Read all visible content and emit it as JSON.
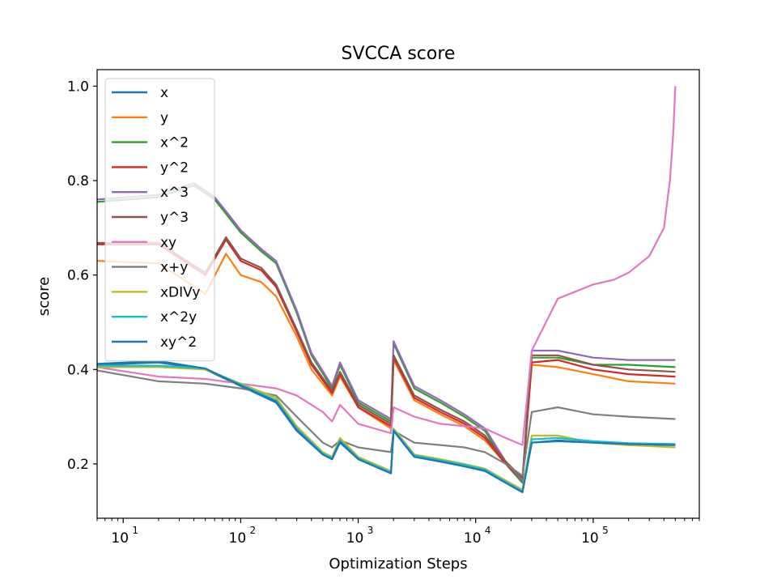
{
  "chart_data": {
    "type": "line",
    "title": "SVCCA score",
    "xlabel": "Optimization Steps",
    "ylabel": "score",
    "x_scale": "log",
    "xlim": [
      6,
      800000
    ],
    "ylim": [
      0.085,
      1.035
    ],
    "y_ticks": [
      0.2,
      0.4,
      0.6,
      0.8,
      1.0
    ],
    "y_tick_labels": [
      "0.2",
      "0.4",
      "0.6",
      "0.8",
      "1.0"
    ],
    "x_ticks": [
      10,
      100,
      1000,
      10000,
      100000
    ],
    "x_tick_labels": [
      {
        "base": "10",
        "exp": "1"
      },
      {
        "base": "10",
        "exp": "2"
      },
      {
        "base": "10",
        "exp": "3"
      },
      {
        "base": "10",
        "exp": "4"
      },
      {
        "base": "10",
        "exp": "5"
      }
    ],
    "grid": false,
    "legend_position": "upper-left",
    "series": [
      {
        "name": "x",
        "color": "#1f77b4",
        "points": [
          [
            6,
            0.41
          ],
          [
            20,
            0.415
          ],
          [
            50,
            0.4
          ],
          [
            100,
            0.365
          ],
          [
            200,
            0.33
          ],
          [
            300,
            0.27
          ],
          [
            500,
            0.22
          ],
          [
            600,
            0.21
          ],
          [
            700,
            0.245
          ],
          [
            1000,
            0.21
          ],
          [
            1900,
            0.18
          ],
          [
            2000,
            0.27
          ],
          [
            3000,
            0.215
          ],
          [
            5000,
            0.205
          ],
          [
            8000,
            0.195
          ],
          [
            12000,
            0.185
          ],
          [
            18000,
            0.16
          ],
          [
            25000,
            0.14
          ],
          [
            30000,
            0.245
          ],
          [
            50000,
            0.25
          ],
          [
            100000,
            0.245
          ],
          [
            200000,
            0.24
          ],
          [
            500000,
            0.24
          ]
        ]
      },
      {
        "name": "y",
        "color": "#ff7f0e",
        "points": [
          [
            6,
            0.63
          ],
          [
            20,
            0.625
          ],
          [
            50,
            0.56
          ],
          [
            75,
            0.645
          ],
          [
            100,
            0.6
          ],
          [
            150,
            0.585
          ],
          [
            200,
            0.555
          ],
          [
            300,
            0.47
          ],
          [
            400,
            0.4
          ],
          [
            600,
            0.345
          ],
          [
            700,
            0.385
          ],
          [
            1000,
            0.32
          ],
          [
            1900,
            0.275
          ],
          [
            2000,
            0.42
          ],
          [
            3000,
            0.335
          ],
          [
            5000,
            0.305
          ],
          [
            8000,
            0.28
          ],
          [
            12000,
            0.25
          ],
          [
            18000,
            0.2
          ],
          [
            25000,
            0.165
          ],
          [
            30000,
            0.41
          ],
          [
            50000,
            0.405
          ],
          [
            100000,
            0.39
          ],
          [
            200000,
            0.375
          ],
          [
            500000,
            0.37
          ]
        ]
      },
      {
        "name": "x^2",
        "color": "#2ca02c",
        "points": [
          [
            6,
            0.755
          ],
          [
            20,
            0.765
          ],
          [
            40,
            0.79
          ],
          [
            60,
            0.76
          ],
          [
            75,
            0.73
          ],
          [
            100,
            0.69
          ],
          [
            150,
            0.65
          ],
          [
            200,
            0.625
          ],
          [
            300,
            0.52
          ],
          [
            400,
            0.43
          ],
          [
            600,
            0.36
          ],
          [
            700,
            0.41
          ],
          [
            1000,
            0.33
          ],
          [
            1900,
            0.29
          ],
          [
            2000,
            0.455
          ],
          [
            3000,
            0.36
          ],
          [
            5000,
            0.33
          ],
          [
            8000,
            0.3
          ],
          [
            12000,
            0.27
          ],
          [
            18000,
            0.2
          ],
          [
            25000,
            0.16
          ],
          [
            30000,
            0.425
          ],
          [
            50000,
            0.425
          ],
          [
            100000,
            0.41
          ],
          [
            200000,
            0.41
          ],
          [
            500000,
            0.405
          ]
        ]
      },
      {
        "name": "y^2",
        "color": "#d62728",
        "points": [
          [
            6,
            0.665
          ],
          [
            20,
            0.665
          ],
          [
            50,
            0.6
          ],
          [
            75,
            0.675
          ],
          [
            100,
            0.63
          ],
          [
            150,
            0.61
          ],
          [
            200,
            0.575
          ],
          [
            300,
            0.48
          ],
          [
            400,
            0.41
          ],
          [
            600,
            0.35
          ],
          [
            700,
            0.39
          ],
          [
            1000,
            0.32
          ],
          [
            1900,
            0.28
          ],
          [
            2000,
            0.425
          ],
          [
            3000,
            0.34
          ],
          [
            5000,
            0.31
          ],
          [
            8000,
            0.285
          ],
          [
            12000,
            0.255
          ],
          [
            18000,
            0.2
          ],
          [
            25000,
            0.165
          ],
          [
            30000,
            0.415
          ],
          [
            50000,
            0.42
          ],
          [
            100000,
            0.4
          ],
          [
            200000,
            0.39
          ],
          [
            500000,
            0.385
          ]
        ]
      },
      {
        "name": "x^3",
        "color": "#9467bd",
        "points": [
          [
            6,
            0.76
          ],
          [
            20,
            0.77
          ],
          [
            40,
            0.795
          ],
          [
            60,
            0.765
          ],
          [
            75,
            0.735
          ],
          [
            100,
            0.695
          ],
          [
            150,
            0.655
          ],
          [
            200,
            0.63
          ],
          [
            300,
            0.525
          ],
          [
            400,
            0.435
          ],
          [
            600,
            0.365
          ],
          [
            700,
            0.415
          ],
          [
            1000,
            0.335
          ],
          [
            1900,
            0.295
          ],
          [
            2000,
            0.46
          ],
          [
            3000,
            0.365
          ],
          [
            5000,
            0.335
          ],
          [
            8000,
            0.305
          ],
          [
            12000,
            0.275
          ],
          [
            18000,
            0.205
          ],
          [
            25000,
            0.165
          ],
          [
            30000,
            0.44
          ],
          [
            50000,
            0.44
          ],
          [
            100000,
            0.425
          ],
          [
            200000,
            0.42
          ],
          [
            500000,
            0.42
          ]
        ]
      },
      {
        "name": "y^3",
        "color": "#8c564b",
        "points": [
          [
            6,
            0.668
          ],
          [
            20,
            0.668
          ],
          [
            50,
            0.605
          ],
          [
            75,
            0.68
          ],
          [
            100,
            0.635
          ],
          [
            150,
            0.615
          ],
          [
            200,
            0.58
          ],
          [
            300,
            0.485
          ],
          [
            400,
            0.415
          ],
          [
            600,
            0.355
          ],
          [
            700,
            0.395
          ],
          [
            1000,
            0.325
          ],
          [
            1900,
            0.285
          ],
          [
            2000,
            0.43
          ],
          [
            3000,
            0.345
          ],
          [
            5000,
            0.315
          ],
          [
            8000,
            0.29
          ],
          [
            12000,
            0.26
          ],
          [
            18000,
            0.205
          ],
          [
            25000,
            0.17
          ],
          [
            30000,
            0.43
          ],
          [
            50000,
            0.43
          ],
          [
            100000,
            0.41
          ],
          [
            200000,
            0.4
          ],
          [
            500000,
            0.395
          ]
        ]
      },
      {
        "name": "xy",
        "color": "#e377c2",
        "points": [
          [
            6,
            0.405
          ],
          [
            20,
            0.385
          ],
          [
            50,
            0.38
          ],
          [
            100,
            0.37
          ],
          [
            200,
            0.36
          ],
          [
            300,
            0.345
          ],
          [
            500,
            0.31
          ],
          [
            600,
            0.29
          ],
          [
            700,
            0.325
          ],
          [
            1000,
            0.285
          ],
          [
            1900,
            0.265
          ],
          [
            2000,
            0.32
          ],
          [
            3000,
            0.3
          ],
          [
            5000,
            0.285
          ],
          [
            8000,
            0.28
          ],
          [
            12000,
            0.275
          ],
          [
            18000,
            0.255
          ],
          [
            25000,
            0.24
          ],
          [
            30000,
            0.44
          ],
          [
            50000,
            0.55
          ],
          [
            100000,
            0.58
          ],
          [
            150000,
            0.59
          ],
          [
            200000,
            0.605
          ],
          [
            300000,
            0.64
          ],
          [
            400000,
            0.7
          ],
          [
            450000,
            0.8
          ],
          [
            480000,
            0.9
          ],
          [
            500000,
            1.0
          ]
        ]
      },
      {
        "name": "x+y",
        "color": "#7f7f7f",
        "points": [
          [
            6,
            0.398
          ],
          [
            20,
            0.375
          ],
          [
            50,
            0.37
          ],
          [
            100,
            0.36
          ],
          [
            200,
            0.345
          ],
          [
            300,
            0.3
          ],
          [
            500,
            0.245
          ],
          [
            600,
            0.235
          ],
          [
            700,
            0.25
          ],
          [
            1000,
            0.235
          ],
          [
            1900,
            0.225
          ],
          [
            2000,
            0.27
          ],
          [
            3000,
            0.245
          ],
          [
            5000,
            0.24
          ],
          [
            8000,
            0.235
          ],
          [
            12000,
            0.225
          ],
          [
            18000,
            0.2
          ],
          [
            25000,
            0.175
          ],
          [
            30000,
            0.31
          ],
          [
            50000,
            0.32
          ],
          [
            100000,
            0.305
          ],
          [
            200000,
            0.3
          ],
          [
            500000,
            0.295
          ]
        ]
      },
      {
        "name": "xDIVy",
        "color": "#bcbd22",
        "points": [
          [
            6,
            0.405
          ],
          [
            20,
            0.405
          ],
          [
            50,
            0.4
          ],
          [
            100,
            0.37
          ],
          [
            200,
            0.34
          ],
          [
            300,
            0.28
          ],
          [
            500,
            0.225
          ],
          [
            600,
            0.215
          ],
          [
            700,
            0.255
          ],
          [
            1000,
            0.215
          ],
          [
            1900,
            0.185
          ],
          [
            2000,
            0.275
          ],
          [
            3000,
            0.22
          ],
          [
            5000,
            0.21
          ],
          [
            8000,
            0.2
          ],
          [
            12000,
            0.19
          ],
          [
            18000,
            0.165
          ],
          [
            25000,
            0.145
          ],
          [
            30000,
            0.26
          ],
          [
            50000,
            0.26
          ],
          [
            100000,
            0.245
          ],
          [
            200000,
            0.24
          ],
          [
            500000,
            0.235
          ]
        ]
      },
      {
        "name": "x^2y",
        "color": "#17becf",
        "points": [
          [
            6,
            0.408
          ],
          [
            20,
            0.408
          ],
          [
            50,
            0.402
          ],
          [
            100,
            0.368
          ],
          [
            200,
            0.335
          ],
          [
            300,
            0.275
          ],
          [
            500,
            0.222
          ],
          [
            600,
            0.212
          ],
          [
            700,
            0.25
          ],
          [
            1000,
            0.212
          ],
          [
            1900,
            0.182
          ],
          [
            2000,
            0.272
          ],
          [
            3000,
            0.218
          ],
          [
            5000,
            0.208
          ],
          [
            8000,
            0.198
          ],
          [
            12000,
            0.188
          ],
          [
            18000,
            0.162
          ],
          [
            25000,
            0.142
          ],
          [
            30000,
            0.252
          ],
          [
            50000,
            0.255
          ],
          [
            100000,
            0.248
          ],
          [
            200000,
            0.244
          ],
          [
            500000,
            0.242
          ]
        ]
      },
      {
        "name": "xy^2",
        "color": "#1f77b4",
        "points": [
          [
            6,
            0.412
          ],
          [
            20,
            0.418
          ],
          [
            50,
            0.402
          ],
          [
            100,
            0.366
          ],
          [
            200,
            0.332
          ],
          [
            300,
            0.272
          ],
          [
            500,
            0.22
          ],
          [
            600,
            0.21
          ],
          [
            700,
            0.247
          ],
          [
            1000,
            0.21
          ],
          [
            1900,
            0.18
          ],
          [
            2000,
            0.27
          ],
          [
            3000,
            0.215
          ],
          [
            5000,
            0.205
          ],
          [
            8000,
            0.195
          ],
          [
            12000,
            0.185
          ],
          [
            18000,
            0.16
          ],
          [
            25000,
            0.14
          ],
          [
            30000,
            0.245
          ],
          [
            50000,
            0.248
          ],
          [
            100000,
            0.245
          ],
          [
            200000,
            0.242
          ],
          [
            500000,
            0.24
          ]
        ]
      }
    ]
  }
}
